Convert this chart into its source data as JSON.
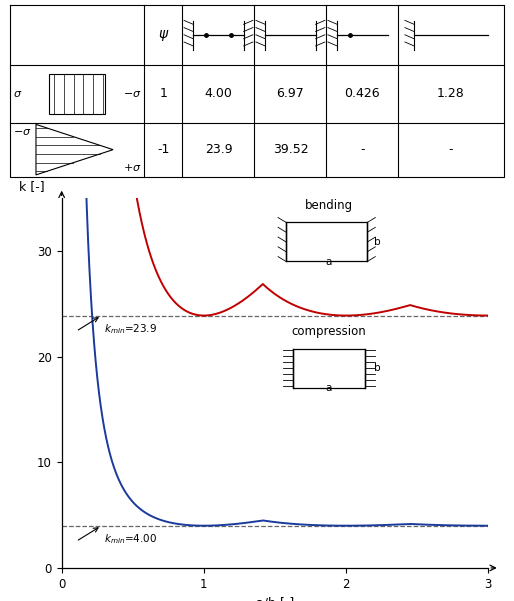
{
  "kmin_bending": 23.9,
  "kmin_compression": 4.0,
  "ymax": 35,
  "ymin": 0,
  "xmax": 3.0,
  "xmin": 0,
  "yticks": [
    0,
    10,
    20,
    30
  ],
  "xticks": [
    0,
    1.0,
    2.0,
    3.0
  ],
  "xlabel": "a/b [-]",
  "ylabel": "k [-]",
  "red_color": "#c00000",
  "blue_color": "#1a3a9c",
  "dashed_color": "#666666",
  "background_color": "#ffffff",
  "row1_psi": "1",
  "row1_vals": [
    "4.00",
    "6.97",
    "0.426",
    "1.28"
  ],
  "row2_psi": "-1",
  "row2_vals": [
    "23.9",
    "39.52",
    "-",
    "-"
  ],
  "sigma_row1_left": "σ",
  "sigma_row1_right": "−σ",
  "sigma_row2_left": "−σ",
  "sigma_row2_right": "+σ"
}
